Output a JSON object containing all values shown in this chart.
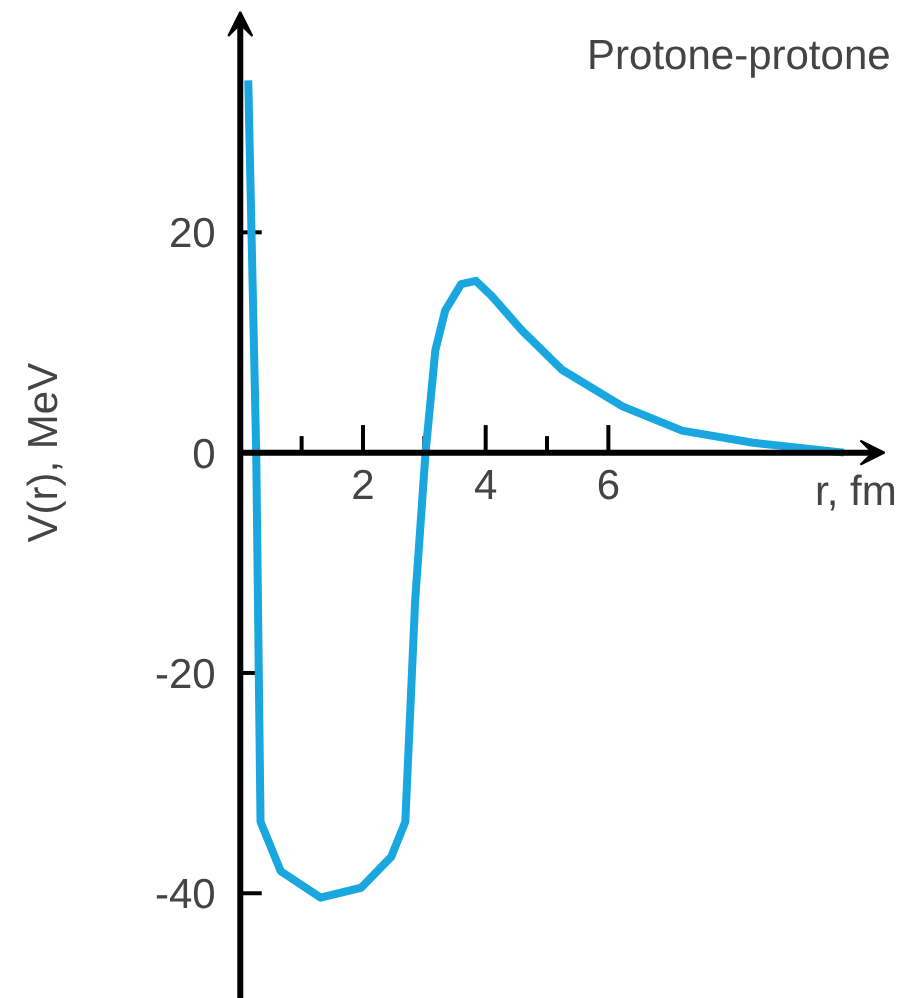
{
  "chart_data": {
    "type": "line",
    "xlabel": "r, fm",
    "ylabel": "V(r), MeV",
    "annotations": [
      "Protone-protone"
    ],
    "xlim": [
      -3.9,
      10.9
    ],
    "ylim": [
      -49.6,
      41
    ],
    "xticks": [
      {
        "value": 1,
        "label": null
      },
      2,
      {
        "value": 3,
        "label": null
      },
      4,
      {
        "value": 5,
        "label": null
      },
      6
    ],
    "yticks": [
      -40,
      -20,
      0,
      20
    ],
    "grid": false,
    "line_style": "solid",
    "marker": "none",
    "series": [
      {
        "color": "#1aa7e0",
        "x": [
          0.13,
          0.26,
          0.33,
          0.66,
          1.31,
          1.97,
          2.46,
          2.69,
          2.85,
          3.02,
          3.18,
          3.34,
          3.6,
          3.84,
          4.1,
          4.59,
          5.25,
          6.23,
          7.2,
          8.36,
          9.84
        ],
        "values": [
          33.8,
          0,
          -33.5,
          -38,
          -40.4,
          -39.5,
          -36.7,
          -33.5,
          -13.5,
          0,
          9.3,
          12.9,
          15.3,
          15.6,
          14.2,
          11.1,
          7.5,
          4.2,
          2,
          0.9,
          0
        ]
      }
    ]
  }
}
